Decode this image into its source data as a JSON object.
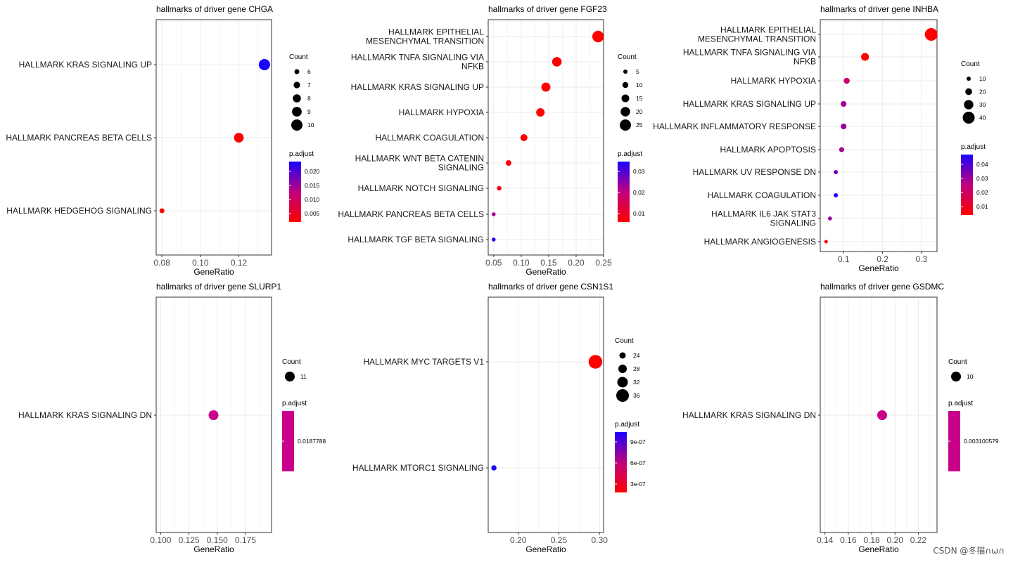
{
  "watermark": "CSDN @冬猫∩ω∩",
  "chart_data": [
    {
      "type": "scatter",
      "title": "hallmarks of driver gene CHGA",
      "xlabel": "GeneRatio",
      "xlim": [
        0.077,
        0.137
      ],
      "xticks": [
        "0.08",
        "0.10",
        "0.12"
      ],
      "categories": [
        "HALLMARK KRAS SIGNALING UP",
        "HALLMARK PANCREAS BETA CELLS",
        "HALLMARK HEDGEHOG SIGNALING"
      ],
      "points": [
        {
          "category": "HALLMARK KRAS SIGNALING UP",
          "x": 0.1333,
          "count": 10,
          "p_adjust": 0.0225
        },
        {
          "category": "HALLMARK PANCREAS BETA CELLS",
          "x": 0.12,
          "count": 9,
          "p_adjust": 0.0
        },
        {
          "category": "HALLMARK HEDGEHOG SIGNALING",
          "x": 0.08,
          "count": 6,
          "p_adjust": 0.0
        }
      ],
      "count_legend": {
        "title": "Count",
        "values": [
          6,
          7,
          8,
          9,
          10
        ]
      },
      "padj_legend": {
        "title": "p.adjust",
        "ticks": [
          "0.020",
          "0.015",
          "0.010",
          "0.005"
        ]
      }
    },
    {
      "type": "scatter",
      "title": "hallmarks of driver gene FGF23",
      "xlabel": "GeneRatio",
      "xlim": [
        0.04,
        0.25
      ],
      "xticks": [
        "0.05",
        "0.10",
        "0.15",
        "0.20",
        "0.25"
      ],
      "categories": [
        "HALLMARK EPITHELIAL\nMESENCHYMAL TRANSITION",
        "HALLMARK TNFA SIGNALING VIA\nNFKB",
        "HALLMARK KRAS SIGNALING UP",
        "HALLMARK HYPOXIA",
        "HALLMARK COAGULATION",
        "HALLMARK WNT BETA CATENIN\nSIGNALING",
        "HALLMARK NOTCH SIGNALING",
        "HALLMARK PANCREAS BETA CELLS",
        "HALLMARK TGF BETA SIGNALING"
      ],
      "points": [
        {
          "category": 0,
          "x": 0.24,
          "count": 26,
          "p_adjust": 0.0
        },
        {
          "category": 1,
          "x": 0.165,
          "count": 20,
          "p_adjust": 0.0
        },
        {
          "category": 2,
          "x": 0.145,
          "count": 19,
          "p_adjust": 0.0
        },
        {
          "category": 3,
          "x": 0.135,
          "count": 17,
          "p_adjust": 0.0
        },
        {
          "category": 4,
          "x": 0.105,
          "count": 13,
          "p_adjust": 0.0
        },
        {
          "category": 5,
          "x": 0.077,
          "count": 9,
          "p_adjust": 0.001
        },
        {
          "category": 6,
          "x": 0.06,
          "count": 6,
          "p_adjust": 0.003
        },
        {
          "category": 7,
          "x": 0.05,
          "count": 4,
          "p_adjust": 0.02
        },
        {
          "category": 8,
          "x": 0.05,
          "count": 4,
          "p_adjust": 0.035
        }
      ],
      "count_legend": {
        "title": "Count",
        "values": [
          5,
          10,
          15,
          20,
          25
        ]
      },
      "padj_legend": {
        "title": "p.adjust",
        "ticks": [
          "0.03",
          "0.02",
          "0.01"
        ]
      }
    },
    {
      "type": "scatter",
      "title": "hallmarks of driver gene INHBA",
      "xlabel": "GeneRatio",
      "xlim": [
        0.04,
        0.34
      ],
      "xticks": [
        "0.1",
        "0.2",
        "0.3"
      ],
      "categories": [
        "HALLMARK EPITHELIAL\nMESENCHYMAL TRANSITION",
        "HALLMARK TNFA SIGNALING VIA\nNFKB",
        "HALLMARK HYPOXIA",
        "HALLMARK KRAS SIGNALING UP",
        "HALLMARK INFLAMMATORY RESPONSE",
        "HALLMARK APOPTOSIS",
        "HALLMARK UV RESPONSE DN",
        "HALLMARK COAGULATION",
        "HALLMARK IL6 JAK STAT3\nSIGNALING",
        "HALLMARK ANGIOGENESIS"
      ],
      "points": [
        {
          "category": 0,
          "x": 0.325,
          "count": 43,
          "p_adjust": 0.0
        },
        {
          "category": 1,
          "x": 0.155,
          "count": 24,
          "p_adjust": 0.0
        },
        {
          "category": 2,
          "x": 0.108,
          "count": 17,
          "p_adjust": 0.018
        },
        {
          "category": 3,
          "x": 0.1,
          "count": 16,
          "p_adjust": 0.025
        },
        {
          "category": 4,
          "x": 0.1,
          "count": 16,
          "p_adjust": 0.027
        },
        {
          "category": 5,
          "x": 0.095,
          "count": 13,
          "p_adjust": 0.025
        },
        {
          "category": 6,
          "x": 0.08,
          "count": 10,
          "p_adjust": 0.031
        },
        {
          "category": 7,
          "x": 0.08,
          "count": 10,
          "p_adjust": 0.043
        },
        {
          "category": 8,
          "x": 0.065,
          "count": 9,
          "p_adjust": 0.027
        },
        {
          "category": 9,
          "x": 0.055,
          "count": 4,
          "p_adjust": 0.0
        }
      ],
      "count_legend": {
        "title": "Count",
        "values": [
          10,
          20,
          30,
          40
        ]
      },
      "padj_legend": {
        "title": "p.adjust",
        "ticks": [
          "0.04",
          "0.03",
          "0.02",
          "0.01"
        ]
      }
    },
    {
      "type": "scatter",
      "title": "hallmarks of driver gene SLURP1",
      "xlabel": "GeneRatio",
      "xlim": [
        0.096,
        0.198
      ],
      "xticks": [
        "0.100",
        "0.125",
        "0.150",
        "0.175"
      ],
      "categories": [
        "HALLMARK KRAS SIGNALING DN"
      ],
      "points": [
        {
          "category": 0,
          "x": 0.1467,
          "count": 11,
          "p_adjust": 0.0187788
        }
      ],
      "count_legend": {
        "title": "Count",
        "values": [
          11
        ]
      },
      "padj_legend": {
        "title": "p.adjust",
        "ticks": [
          "0.0187788"
        ]
      }
    },
    {
      "type": "scatter",
      "title": "hallmarks of driver gene CSN1S1",
      "xlabel": "GeneRatio",
      "xlim": [
        0.163,
        0.305
      ],
      "xticks": [
        "0.20",
        "0.25",
        "0.30"
      ],
      "categories": [
        "HALLMARK MYC TARGETS V1",
        "HALLMARK MTORC1 SIGNALING"
      ],
      "points": [
        {
          "category": 0,
          "x": 0.295,
          "count": 38,
          "p_adjust": 0.0
        },
        {
          "category": 1,
          "x": 0.17,
          "count": 22,
          "p_adjust": 1.08e-06
        }
      ],
      "count_legend": {
        "title": "Count",
        "values": [
          24,
          28,
          32,
          36
        ]
      },
      "padj_legend": {
        "title": "p.adjust",
        "ticks": [
          "9e-07",
          "6e-07",
          "3e-07"
        ]
      }
    },
    {
      "type": "scatter",
      "title": "hallmarks of driver gene GSDMC",
      "xlabel": "GeneRatio",
      "xlim": [
        0.136,
        0.236
      ],
      "xticks": [
        "0.14",
        "0.16",
        "0.18",
        "0.20",
        "0.22"
      ],
      "categories": [
        "HALLMARK KRAS SIGNALING DN"
      ],
      "points": [
        {
          "category": 0,
          "x": 0.189,
          "count": 10,
          "p_adjust": 0.003100579
        }
      ],
      "count_legend": {
        "title": "Count",
        "values": [
          10
        ]
      },
      "padj_legend": {
        "title": "p.adjust",
        "ticks": [
          "0.003100579"
        ]
      }
    }
  ]
}
